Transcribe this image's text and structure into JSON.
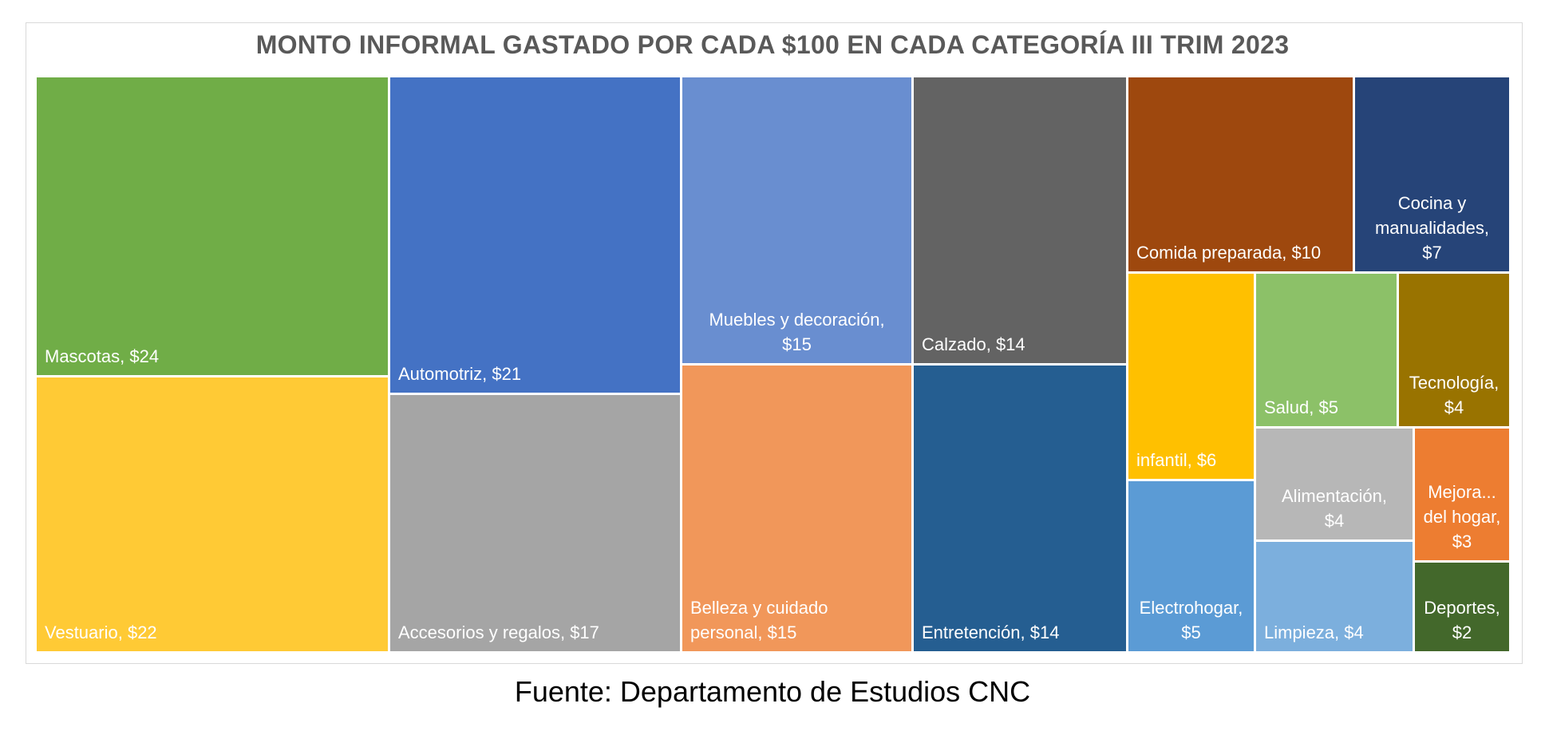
{
  "source_text": "Fuente: Departamento de Estudios CNC",
  "chart_data": {
    "type": "treemap",
    "title": "MONTO INFORMAL GASTADO POR CADA $100 EN CADA CATEGORÍA III TRIM 2023",
    "unit": "$",
    "categories": [
      {
        "name": "Mascotas",
        "value": 24,
        "label": "Mascotas,  $24",
        "color": "#70ad47"
      },
      {
        "name": "Vestuario",
        "value": 22,
        "label": "Vestuario,  $22",
        "color": "#ffca35"
      },
      {
        "name": "Automotriz",
        "value": 21,
        "label": "Automotriz,  $21",
        "color": "#4472c4"
      },
      {
        "name": "Accesorios y regalos",
        "value": 17,
        "label": "Accesorios y regalos,  $17",
        "color": "#a5a5a5"
      },
      {
        "name": "Muebles y decoración",
        "value": 15,
        "label": "Muebles y decoración,\n$15",
        "color": "#698ed0"
      },
      {
        "name": "Belleza y cuidado personal",
        "value": 15,
        "label": "Belleza y cuidado\npersonal,  $15",
        "color": "#f1975a"
      },
      {
        "name": "Calzado",
        "value": 14,
        "label": "Calzado,  $14",
        "color": "#636363"
      },
      {
        "name": "Entretención",
        "value": 14,
        "label": "Entretención,  $14",
        "color": "#255e91"
      },
      {
        "name": "Comida preparada",
        "value": 10,
        "label": "Comida preparada,  $10",
        "color": "#9e480e"
      },
      {
        "name": "Cocina y manualidades",
        "value": 7,
        "label": "Cocina y\nmanualidades,\n$7",
        "color": "#264478"
      },
      {
        "name": "infantil",
        "value": 6,
        "label": "infantil,  $6",
        "color": "#ffc000"
      },
      {
        "name": "Salud",
        "value": 5,
        "label": "Salud,  $5",
        "color": "#8cc168"
      },
      {
        "name": "Tecnología",
        "value": 4,
        "label": "Tecnología,\n$4",
        "color": "#997300"
      },
      {
        "name": "Electrohogar",
        "value": 5,
        "label": "Electrohogar,\n$5",
        "color": "#5b9bd5"
      },
      {
        "name": "Alimentación",
        "value": 4,
        "label": "Alimentación,\n$4",
        "color": "#b7b7b7"
      },
      {
        "name": "Mejora... del hogar",
        "value": 3,
        "label": "Mejora...\ndel hogar,\n$3",
        "color": "#ed7d31"
      },
      {
        "name": "Limpieza",
        "value": 4,
        "label": "Limpieza,  $4",
        "color": "#7cafdd"
      },
      {
        "name": "Deportes",
        "value": 2,
        "label": "Deportes,\n$2",
        "color": "#43682b"
      }
    ]
  }
}
